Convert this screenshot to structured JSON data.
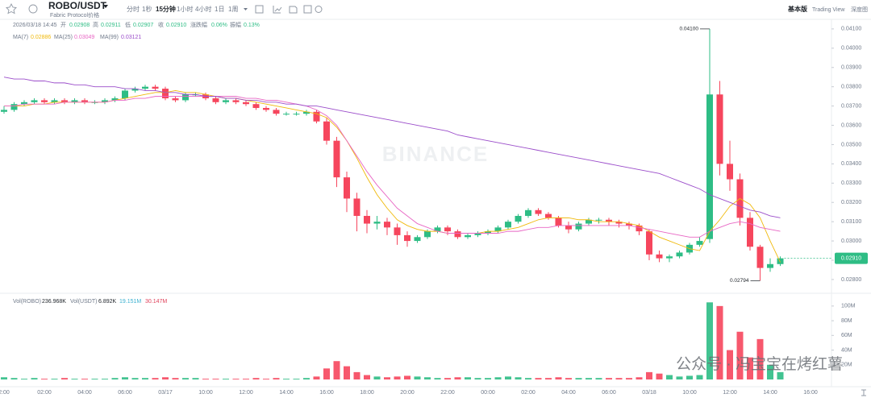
{
  "header": {
    "pair": "ROBO/USDT",
    "subtitle": "Fabric Protocol价格",
    "intervals": [
      "分时",
      "1秒",
      "15分钟",
      "1小时",
      "4小时",
      "1日",
      "1周"
    ],
    "views": [
      "基本版",
      "Trading View",
      "深度图"
    ]
  },
  "info": {
    "time": "2026/03/18 14:45",
    "fields": [
      {
        "label": "开",
        "value": "0.02908"
      },
      {
        "label": "高",
        "value": "0.02911"
      },
      {
        "label": "低",
        "value": "0.02907"
      },
      {
        "label": "收",
        "value": "0.02910"
      },
      {
        "label": "涨跌幅",
        "value": "0.06%"
      },
      {
        "label": "振幅",
        "value": "0.13%"
      }
    ]
  },
  "watermarks": [
    "BINANCE",
    "公众号 · 冯宝宝在烤红薯"
  ],
  "chart_data": {
    "type": "candlestick",
    "categories": [
      "2:00",
      null,
      null,
      null,
      "02:00",
      null,
      null,
      null,
      "04:00",
      null,
      null,
      null,
      "06:00",
      null,
      null,
      null,
      "03/17",
      null,
      null,
      null,
      "10:00",
      null,
      null,
      null,
      "12:00",
      null,
      null,
      null,
      "14:00",
      null,
      null,
      null,
      "16:00",
      null,
      null,
      null,
      "18:00",
      null,
      null,
      null,
      "20:00",
      null,
      null,
      null,
      "22:00",
      null,
      null,
      null,
      "00:00",
      null,
      null,
      null,
      "02:00",
      null,
      null,
      null,
      "04:00",
      null,
      null,
      null,
      "06:00",
      null,
      null,
      null,
      "03/18",
      null,
      null,
      null,
      "10:00",
      null,
      null,
      null,
      "12:00",
      null,
      null,
      null,
      "14:00",
      null,
      null,
      null,
      "16:00"
    ],
    "open": [
      0.0367,
      0.0368,
      0.0371,
      0.0372,
      0.0373,
      0.0372,
      0.0373,
      0.0372,
      0.0373,
      0.0372,
      0.0372,
      0.0373,
      0.0374,
      0.0378,
      0.0379,
      0.038,
      0.0379,
      0.0374,
      0.0373,
      0.0376,
      0.0376,
      0.0374,
      0.0372,
      0.0373,
      0.0372,
      0.0371,
      0.0369,
      0.0368,
      0.0366,
      0.0366,
      0.0366,
      0.0367,
      0.0362,
      0.0352,
      0.0333,
      0.0322,
      0.0313,
      0.0309,
      0.031,
      0.0307,
      0.0303,
      0.03,
      0.0302,
      0.0305,
      0.0307,
      0.0305,
      0.0302,
      0.0303,
      0.0304,
      0.0305,
      0.0307,
      0.031,
      0.0313,
      0.0316,
      0.0314,
      0.0312,
      0.0308,
      0.0306,
      0.0309,
      0.0311,
      0.0311,
      0.031,
      0.0309,
      0.0308,
      0.0305,
      0.0293,
      0.0291,
      0.0292,
      0.0294,
      0.0298,
      0.0301,
      0.0376,
      0.034,
      0.0332,
      0.0312,
      0.0297,
      0.0286,
      0.0288,
      null,
      null,
      null
    ],
    "high": [
      0.037,
      0.0372,
      0.0373,
      0.0374,
      0.0374,
      0.0374,
      0.0374,
      0.0374,
      0.0374,
      0.0373,
      0.0374,
      0.0375,
      0.0379,
      0.038,
      0.0381,
      0.0381,
      0.038,
      0.0375,
      0.0377,
      0.0377,
      0.0377,
      0.0375,
      0.0374,
      0.0374,
      0.0373,
      0.0372,
      0.037,
      0.0369,
      0.0367,
      0.0367,
      0.0368,
      0.0368,
      0.0364,
      0.0354,
      0.0336,
      0.0325,
      0.0316,
      0.0313,
      0.0312,
      0.0309,
      0.0305,
      0.0303,
      0.0306,
      0.0308,
      0.0308,
      0.0306,
      0.0304,
      0.0305,
      0.0306,
      0.0308,
      0.0311,
      0.0314,
      0.0317,
      0.0317,
      0.0315,
      0.0313,
      0.031,
      0.031,
      0.0312,
      0.0312,
      0.0312,
      0.0311,
      0.031,
      0.0309,
      0.0306,
      0.0295,
      0.0293,
      0.0295,
      0.0299,
      0.0302,
      0.041,
      0.0383,
      0.0352,
      0.0335,
      0.0315,
      0.0298,
      0.0291,
      0.0292,
      null,
      null,
      null
    ],
    "low": [
      0.0366,
      0.0367,
      0.037,
      0.0371,
      0.0371,
      0.0371,
      0.0371,
      0.0371,
      0.0371,
      0.0371,
      0.0371,
      0.0372,
      0.0373,
      0.0377,
      0.0378,
      0.0378,
      0.0373,
      0.0372,
      0.0372,
      0.0375,
      0.0373,
      0.0371,
      0.0371,
      0.0371,
      0.037,
      0.0368,
      0.0367,
      0.0365,
      0.0365,
      0.0365,
      0.0365,
      0.0361,
      0.035,
      0.0328,
      0.0315,
      0.0305,
      0.0304,
      0.0306,
      0.0303,
      0.0298,
      0.0297,
      0.0299,
      0.0301,
      0.0304,
      0.0303,
      0.0301,
      0.0301,
      0.0302,
      0.0303,
      0.0304,
      0.0306,
      0.0309,
      0.0312,
      0.0313,
      0.0311,
      0.0307,
      0.0304,
      0.0305,
      0.0308,
      0.0309,
      0.0308,
      0.0307,
      0.0306,
      0.0303,
      0.029,
      0.0289,
      0.0289,
      0.0291,
      0.0293,
      0.0297,
      0.0299,
      0.0334,
      0.0326,
      0.0308,
      0.0295,
      0.02794,
      0.0284,
      0.0287,
      null,
      null,
      null
    ],
    "close": [
      0.0368,
      0.0371,
      0.0372,
      0.0373,
      0.0372,
      0.0373,
      0.0372,
      0.0373,
      0.0372,
      0.0372,
      0.0373,
      0.0374,
      0.0378,
      0.0379,
      0.038,
      0.0379,
      0.0374,
      0.0373,
      0.0376,
      0.0376,
      0.0374,
      0.0372,
      0.0373,
      0.0372,
      0.0371,
      0.0369,
      0.0368,
      0.0366,
      0.0366,
      0.0366,
      0.0367,
      0.0362,
      0.0352,
      0.0333,
      0.0322,
      0.0313,
      0.0309,
      0.031,
      0.0307,
      0.0303,
      0.03,
      0.0302,
      0.0305,
      0.0307,
      0.0305,
      0.0302,
      0.0303,
      0.0304,
      0.0305,
      0.0307,
      0.031,
      0.0313,
      0.0316,
      0.0314,
      0.0312,
      0.0308,
      0.0306,
      0.0309,
      0.0311,
      0.0311,
      0.031,
      0.0309,
      0.0308,
      0.0305,
      0.0293,
      0.0291,
      0.0292,
      0.0294,
      0.0298,
      0.03,
      0.0376,
      0.034,
      0.0332,
      0.0312,
      0.0297,
      0.0286,
      0.0288,
      0.0291,
      null,
      null,
      null
    ],
    "up_color": "#2ebd85",
    "down_color": "#f6465d",
    "ylim": [
      0.02737,
      0.04133
    ],
    "yticks": [
      {
        "value": 0.028,
        "label": "0.02800"
      },
      {
        "value": 0.029,
        "label": "0.02900"
      },
      {
        "value": 0.03,
        "label": "0.03000"
      },
      {
        "value": 0.031,
        "label": "0.03100"
      },
      {
        "value": 0.032,
        "label": "0.03200"
      },
      {
        "value": 0.033,
        "label": "0.03300"
      },
      {
        "value": 0.034,
        "label": "0.03400"
      },
      {
        "value": 0.035,
        "label": "0.03500"
      },
      {
        "value": 0.036,
        "label": "0.03600"
      },
      {
        "value": 0.037,
        "label": "0.03700"
      },
      {
        "value": 0.038,
        "label": "0.03800"
      },
      {
        "value": 0.039,
        "label": "0.03900"
      },
      {
        "value": 0.04,
        "label": "0.04000"
      },
      {
        "value": 0.041,
        "label": "0.04100"
      }
    ],
    "series": [
      {
        "name": "MA(7)",
        "color": "#f0b90b",
        "legend_value": 0.02886,
        "values": [
          0.037,
          0.037,
          0.037,
          0.0371,
          0.0371,
          0.0372,
          0.0372,
          0.0372,
          0.0372,
          0.0372,
          0.0372,
          0.0373,
          0.0374,
          0.0375,
          0.0376,
          0.0377,
          0.0377,
          0.0378,
          0.0377,
          0.0377,
          0.0376,
          0.0375,
          0.0374,
          0.0374,
          0.0373,
          0.0372,
          0.0371,
          0.037,
          0.0369,
          0.0368,
          0.0367,
          0.0366,
          0.0364,
          0.0359,
          0.0352,
          0.0343,
          0.0333,
          0.0324,
          0.0317,
          0.0311,
          0.0308,
          0.0306,
          0.0305,
          0.0305,
          0.0304,
          0.0304,
          0.0304,
          0.0304,
          0.0305,
          0.0305,
          0.0306,
          0.0307,
          0.0309,
          0.0311,
          0.0312,
          0.0312,
          0.0312,
          0.0311,
          0.0311,
          0.031,
          0.031,
          0.031,
          0.0309,
          0.0308,
          0.0305,
          0.0302,
          0.03,
          0.0298,
          0.0296,
          0.0295,
          0.0305,
          0.0311,
          0.0318,
          0.0322,
          0.0319,
          0.0312,
          0.03,
          0.0289,
          null,
          null,
          null
        ]
      },
      {
        "name": "MA(25)",
        "color": "#e866c4",
        "legend_value": 0.03049,
        "values": [
          0.037,
          0.037,
          0.0371,
          0.0371,
          0.0371,
          0.0371,
          0.0372,
          0.0372,
          0.0372,
          0.0372,
          0.0372,
          0.0373,
          0.0373,
          0.0374,
          0.0374,
          0.0375,
          0.0375,
          0.0375,
          0.0375,
          0.0375,
          0.0375,
          0.0375,
          0.0375,
          0.0375,
          0.0374,
          0.0374,
          0.0373,
          0.0373,
          0.0372,
          0.0371,
          0.037,
          0.0368,
          0.0365,
          0.036,
          0.0352,
          0.0344,
          0.0336,
          0.0329,
          0.0323,
          0.0317,
          0.0313,
          0.0309,
          0.0307,
          0.0305,
          0.0304,
          0.0304,
          0.0304,
          0.0304,
          0.0304,
          0.0304,
          0.0305,
          0.0305,
          0.0306,
          0.0307,
          0.0307,
          0.0308,
          0.0308,
          0.0308,
          0.0308,
          0.0308,
          0.0308,
          0.0308,
          0.0308,
          0.0307,
          0.0306,
          0.0305,
          0.0304,
          0.0303,
          0.0302,
          0.0302,
          0.0305,
          0.0307,
          0.0309,
          0.031,
          0.0309,
          0.0307,
          0.0306,
          0.0305,
          null,
          null,
          null
        ]
      },
      {
        "name": "MA(99)",
        "color": "#9b4dca",
        "legend_value": 0.03121,
        "values": [
          0.0385,
          0.0384,
          0.0384,
          0.0383,
          0.0383,
          0.0382,
          0.0382,
          0.0381,
          0.0381,
          0.038,
          0.038,
          0.038,
          0.0379,
          0.0379,
          0.0378,
          0.0378,
          0.0377,
          0.0377,
          0.0376,
          0.0376,
          0.0375,
          0.0375,
          0.0374,
          0.0374,
          0.0373,
          0.0373,
          0.0372,
          0.0372,
          0.0371,
          0.0371,
          0.037,
          0.037,
          0.0369,
          0.0368,
          0.0367,
          0.0366,
          0.0365,
          0.0364,
          0.0363,
          0.0362,
          0.0361,
          0.036,
          0.0359,
          0.0358,
          0.0357,
          0.0355,
          0.0354,
          0.0353,
          0.0352,
          0.0351,
          0.035,
          0.0349,
          0.0348,
          0.0347,
          0.0346,
          0.0345,
          0.0344,
          0.0343,
          0.0342,
          0.0341,
          0.034,
          0.0339,
          0.0338,
          0.0337,
          0.0336,
          0.0335,
          0.0333,
          0.0331,
          0.0329,
          0.0327,
          0.0324,
          0.0322,
          0.032,
          0.0318,
          0.0316,
          0.0315,
          0.0313,
          0.0312,
          null,
          null,
          null
        ]
      }
    ],
    "annotations": [
      {
        "value": 0.041,
        "label": "0.04100"
      },
      {
        "value": 0.02794,
        "label": "0.02794"
      }
    ],
    "last_price": {
      "value": 0.0291,
      "label": "0.02910"
    },
    "volume": {
      "values": [
        3,
        2,
        1,
        2,
        1,
        1,
        2,
        1,
        1,
        1,
        1,
        2,
        3,
        2,
        2,
        2,
        3,
        2,
        2,
        2,
        1,
        1,
        1,
        1,
        1,
        2,
        1,
        2,
        1,
        1,
        2,
        4,
        15,
        25,
        18,
        10,
        6,
        4,
        3,
        4,
        5,
        4,
        3,
        2,
        2,
        3,
        3,
        2,
        2,
        3,
        4,
        3,
        2,
        2,
        2,
        3,
        2,
        2,
        2,
        2,
        2,
        2,
        2,
        3,
        10,
        8,
        6,
        4,
        5,
        6,
        105,
        100,
        40,
        65,
        30,
        55,
        20,
        10,
        null,
        null,
        null
      ],
      "ylim": [
        0,
        113
      ],
      "yticks": [
        {
          "value": 20,
          "label": "20M"
        },
        {
          "value": 40,
          "label": "40M"
        },
        {
          "value": 60,
          "label": "60M"
        },
        {
          "value": 80,
          "label": "80M"
        },
        {
          "value": 100,
          "label": "100M"
        }
      ],
      "legend": [
        "Vol(ROBO)",
        "236.968K",
        "Vol(USDT)",
        "6.892K",
        "19.151M",
        "30.147M"
      ]
    }
  }
}
